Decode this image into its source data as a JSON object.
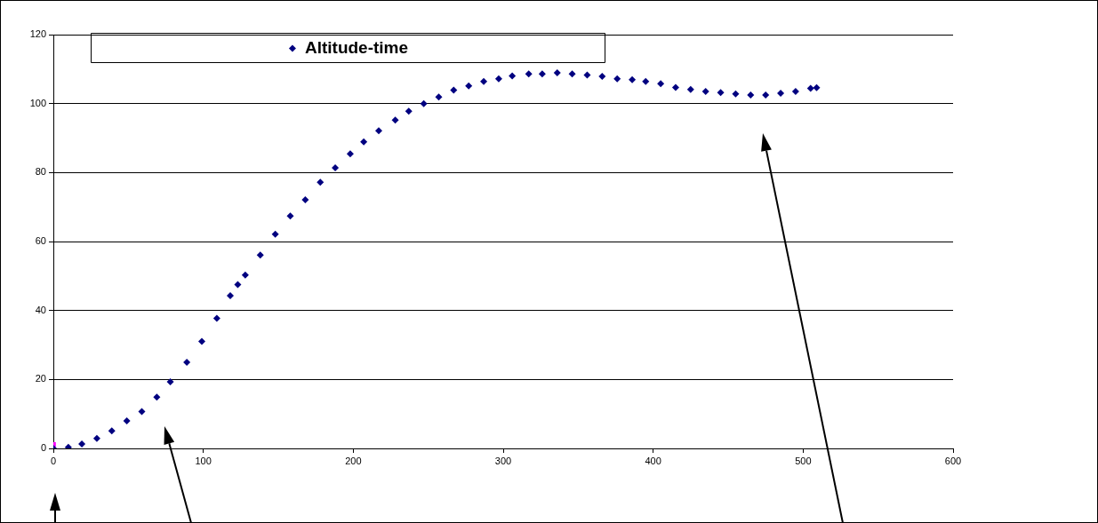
{
  "chart_data": {
    "type": "scatter",
    "legend": "top",
    "grid": "y",
    "xlim": [
      0,
      600
    ],
    "xticks": [
      0,
      100,
      200,
      300,
      400,
      500,
      600
    ],
    "ylim": [
      0,
      120
    ],
    "yticks": [
      0,
      20,
      40,
      60,
      80,
      100,
      120
    ],
    "series": [
      {
        "name": "Altitude-time",
        "color": "#000080",
        "marker": "diamond",
        "x": [
          0,
          10,
          19,
          29,
          39,
          49,
          59,
          69,
          78,
          89,
          99,
          109,
          118,
          123,
          128,
          138,
          148,
          158,
          168,
          178,
          188,
          198,
          207,
          217,
          228,
          237,
          247,
          257,
          267,
          277,
          287,
          297,
          306,
          317,
          326,
          336,
          346,
          356,
          366,
          376,
          386,
          395,
          405,
          415,
          425,
          435,
          445,
          455,
          465,
          475,
          485,
          495,
          505,
          509
        ],
        "values": [
          0,
          0.3,
          1.3,
          2.9,
          5.1,
          8.0,
          10.7,
          14.9,
          19.3,
          25.0,
          31.0,
          37.7,
          44.3,
          47.5,
          50.3,
          56.1,
          62.1,
          67.4,
          72.1,
          77.2,
          81.4,
          85.4,
          88.9,
          92.1,
          95.2,
          97.8,
          100.0,
          101.9,
          103.9,
          105.1,
          106.4,
          107.2,
          108.0,
          108.6,
          108.6,
          108.9,
          108.6,
          108.3,
          107.9,
          107.2,
          106.9,
          106.4,
          105.8,
          104.7,
          104.1,
          103.5,
          103.2,
          102.8,
          102.5,
          102.5,
          103.0,
          103.5,
          104.4,
          104.6
        ]
      },
      {
        "color": "#ff00ff",
        "marker": "square",
        "x": [
          0
        ],
        "values": [
          1.1
        ]
      }
    ]
  }
}
